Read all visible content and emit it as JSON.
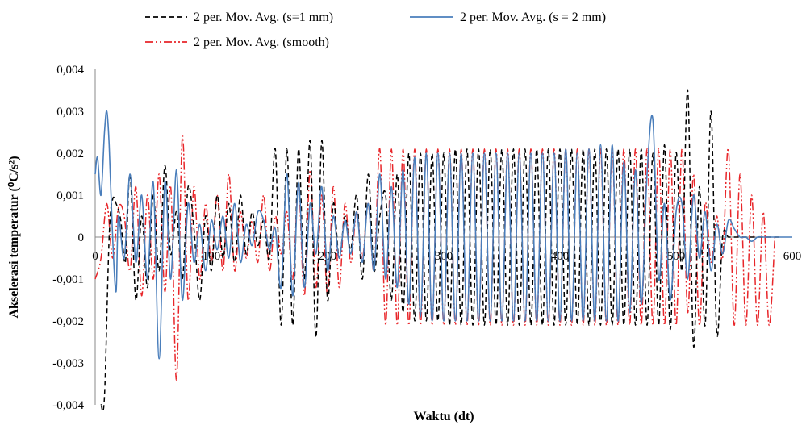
{
  "chart_data": {
    "type": "line",
    "xlabel": "Waktu (dt)",
    "ylabel": "Akselerasi temperatur (⁰C/s²)",
    "xlim": [
      0,
      600
    ],
    "ylim": [
      -0.004,
      0.004
    ],
    "x_ticks": [
      "0",
      "100",
      "200",
      "300",
      "400",
      "500",
      "600"
    ],
    "y_ticks": [
      "-0,004",
      "-0,003",
      "-0,002",
      "-0,001",
      "0",
      "0,001",
      "0,002",
      "0,003",
      "0,004"
    ],
    "grid": false,
    "legend_position": "top",
    "series": [
      {
        "name": "2 per. Mov. Avg. (s=1 mm)",
        "color": "#000000",
        "dash": "dashed",
        "x": [
          5,
          8,
          12,
          15,
          18,
          22,
          26,
          30,
          35,
          40,
          45,
          50,
          55,
          60,
          65,
          70,
          75,
          80,
          85,
          90,
          95,
          100,
          105,
          110,
          115,
          120,
          125,
          130,
          135,
          140,
          145,
          150,
          155,
          160,
          165,
          170,
          175,
          180,
          185,
          190,
          195,
          200,
          205,
          210,
          215,
          220,
          225,
          230,
          235,
          240,
          245,
          250,
          255,
          260,
          265,
          270,
          275,
          280,
          285,
          290,
          295,
          300,
          305,
          310,
          315,
          320,
          325,
          330,
          335,
          340,
          345,
          350,
          355,
          360,
          365,
          370,
          375,
          380,
          385,
          390,
          395,
          400,
          405,
          410,
          415,
          420,
          425,
          430,
          435,
          440,
          445,
          450,
          455,
          460,
          465,
          470,
          475,
          480,
          485,
          490,
          495,
          500,
          505,
          510,
          515,
          520,
          525,
          530,
          535,
          540,
          545,
          550,
          555,
          560,
          565,
          570,
          575,
          580,
          585,
          590
        ],
        "y": [
          -0.004,
          -0.0038,
          0.0,
          0.0009,
          0.0008,
          0.0004,
          -0.0006,
          0.0015,
          -0.0015,
          0.0005,
          -0.0012,
          0.001,
          -0.0008,
          0.0017,
          -0.0004,
          0.0006,
          -0.001,
          0.0012,
          0.0002,
          -0.0015,
          0.0005,
          -0.0008,
          0.001,
          -0.0005,
          0.0008,
          -0.0006,
          0.001,
          -0.0004,
          0.0006,
          -0.0002,
          0.0004,
          -0.0005,
          0.0021,
          -0.0021,
          0.0021,
          -0.0021,
          0.0021,
          -0.001,
          0.0023,
          -0.0024,
          0.0023,
          -0.0015,
          0.0008,
          -0.0005,
          0.0005,
          -0.0003,
          0.001,
          -0.001,
          0.0015,
          -0.0008,
          0.0005,
          0.001,
          -0.0015,
          0.0015,
          -0.0018,
          0.002,
          -0.002,
          0.002,
          -0.002,
          0.002,
          -0.002,
          0.002,
          -0.0021,
          0.0021,
          -0.0021,
          0.0021,
          -0.0021,
          0.0021,
          -0.0021,
          0.0021,
          -0.0021,
          0.0021,
          -0.0021,
          0.0021,
          -0.0021,
          0.0021,
          -0.0021,
          0.0021,
          -0.0021,
          0.0021,
          -0.0021,
          0.0021,
          -0.0021,
          0.0021,
          -0.0021,
          0.0021,
          -0.0021,
          0.0021,
          -0.0021,
          0.0021,
          -0.0021,
          0.0021,
          -0.0021,
          0.0021,
          -0.0021,
          0.0021,
          -0.0021,
          0.002,
          -0.0021,
          0.0022,
          -0.0022,
          0.002,
          -0.0008,
          0.0035,
          -0.0026,
          0.0012,
          -0.0021,
          0.003,
          -0.0023,
          0.0,
          0.0,
          0.0,
          0.0,
          0.0,
          0.0,
          0.0,
          0.0,
          0.0,
          0.0,
          0.0
        ]
      },
      {
        "name": "2 per. Mov. Avg. (s = 2 mm)",
        "color": "#4a7ebb",
        "dash": "solid",
        "x": [
          0,
          2,
          5,
          8,
          10,
          12,
          15,
          18,
          20,
          25,
          30,
          35,
          40,
          45,
          50,
          55,
          60,
          65,
          70,
          75,
          80,
          85,
          90,
          95,
          100,
          105,
          110,
          115,
          120,
          125,
          130,
          135,
          140,
          145,
          150,
          155,
          160,
          165,
          170,
          175,
          180,
          185,
          190,
          195,
          200,
          205,
          210,
          215,
          220,
          225,
          230,
          235,
          240,
          245,
          250,
          255,
          260,
          265,
          270,
          275,
          280,
          285,
          290,
          295,
          300,
          305,
          310,
          315,
          320,
          325,
          330,
          335,
          340,
          345,
          350,
          355,
          360,
          365,
          370,
          375,
          380,
          385,
          390,
          395,
          400,
          405,
          410,
          415,
          420,
          425,
          430,
          435,
          440,
          445,
          450,
          455,
          460,
          465,
          470,
          475,
          480,
          485,
          490,
          495,
          500,
          505,
          510,
          515,
          520,
          525,
          530,
          535,
          540,
          545,
          550,
          555,
          560,
          565,
          570,
          575,
          580,
          585,
          590,
          595,
          600
        ],
        "y": [
          0.0015,
          0.0019,
          0.001,
          0.0025,
          0.003,
          0.0022,
          0.0,
          -0.0013,
          0.0005,
          -0.0005,
          0.0015,
          -0.0006,
          0.001,
          -0.001,
          0.0013,
          -0.0029,
          0.0013,
          -0.001,
          0.0016,
          -0.0015,
          0.0008,
          -0.0006,
          0.0003,
          -0.0008,
          0.0004,
          -0.0003,
          0.0005,
          -0.0005,
          0.0008,
          -0.0006,
          0.0003,
          -0.0002,
          0.0006,
          0.0004,
          -0.0003,
          0.0002,
          -0.0012,
          0.0015,
          -0.0014,
          0.0013,
          -0.0012,
          0.0008,
          -0.0004,
          0.0012,
          -0.0008,
          0.0005,
          -0.0005,
          0.0004,
          -0.0004,
          0.0006,
          -0.0006,
          0.0008,
          -0.0008,
          0.0015,
          -0.001,
          0.0012,
          -0.0012,
          0.0016,
          -0.0016,
          0.0019,
          -0.0019,
          0.002,
          -0.002,
          0.002,
          -0.002,
          0.002,
          -0.002,
          0.002,
          -0.002,
          0.002,
          -0.002,
          0.002,
          -0.002,
          0.002,
          -0.002,
          0.002,
          -0.002,
          0.002,
          -0.002,
          0.002,
          -0.002,
          0.002,
          -0.002,
          0.002,
          -0.002,
          0.0021,
          -0.002,
          0.002,
          -0.002,
          0.0021,
          -0.002,
          0.0022,
          -0.002,
          0.0022,
          -0.002,
          0.0018,
          -0.0018,
          0.0016,
          -0.0016,
          0.0015,
          0.0028,
          -0.001,
          0.0008,
          -0.0015,
          0.0006,
          0.0008,
          -0.001,
          0.001,
          -0.0005,
          0.0006,
          -0.0008,
          0.0003,
          -0.0004,
          0.0004,
          0.0002,
          0.0,
          0.0,
          -0.0001,
          0.0,
          0.0,
          0.0,
          0.0,
          0.0,
          0.0,
          0.0
        ]
      },
      {
        "name": "2 per. Mov. Avg. (smooth)",
        "color": "#e8262a",
        "dash": "dashdotdot",
        "x": [
          0,
          5,
          10,
          15,
          20,
          25,
          30,
          35,
          40,
          45,
          50,
          55,
          60,
          65,
          70,
          75,
          80,
          85,
          90,
          95,
          100,
          105,
          110,
          115,
          120,
          125,
          130,
          135,
          140,
          145,
          150,
          155,
          160,
          165,
          170,
          175,
          180,
          185,
          190,
          195,
          200,
          205,
          210,
          215,
          220,
          225,
          230,
          235,
          240,
          245,
          250,
          255,
          260,
          265,
          270,
          275,
          280,
          285,
          290,
          295,
          300,
          305,
          310,
          315,
          320,
          325,
          330,
          335,
          340,
          345,
          350,
          355,
          360,
          365,
          370,
          375,
          380,
          385,
          390,
          395,
          400,
          405,
          410,
          415,
          420,
          425,
          430,
          435,
          440,
          445,
          450,
          455,
          460,
          465,
          470,
          475,
          480,
          485,
          490,
          495,
          500,
          505,
          510,
          515,
          520,
          525,
          530,
          535,
          540,
          545,
          550,
          555,
          560,
          565,
          570,
          575,
          580,
          585
        ],
        "y": [
          -0.001,
          -0.0005,
          0.0008,
          -0.0005,
          0.0007,
          0.0005,
          -0.0008,
          0.0012,
          -0.0014,
          0.001,
          -0.001,
          0.0015,
          -0.0013,
          0.0012,
          -0.0034,
          0.0024,
          -0.0015,
          0.0012,
          -0.001,
          0.0008,
          -0.0006,
          0.001,
          -0.0008,
          0.0015,
          -0.0008,
          0.0006,
          -0.0005,
          0.0004,
          -0.0006,
          0.001,
          -0.0008,
          0.0005,
          -0.0004,
          0.0006,
          -0.001,
          0.0012,
          -0.0014,
          0.0016,
          -0.0012,
          0.001,
          -0.0014,
          0.0012,
          -0.0012,
          0.0008,
          -0.0006,
          0.0006,
          -0.0005,
          0.0008,
          -0.0008,
          0.0021,
          -0.0021,
          0.0021,
          -0.0021,
          0.0021,
          -0.0021,
          0.0021,
          -0.0021,
          0.0021,
          -0.0021,
          0.0021,
          -0.0021,
          0.0021,
          -0.0021,
          0.0021,
          -0.0021,
          0.0021,
          -0.0021,
          0.0021,
          -0.0021,
          0.0021,
          -0.0021,
          0.0021,
          -0.0021,
          0.0021,
          -0.0021,
          0.0021,
          -0.0021,
          0.0021,
          -0.0021,
          0.0021,
          -0.0021,
          0.0021,
          -0.0021,
          0.0021,
          -0.0021,
          0.0021,
          -0.0021,
          0.0021,
          -0.0021,
          0.0021,
          -0.0021,
          0.0021,
          -0.0021,
          0.0021,
          -0.0021,
          0.0021,
          -0.0021,
          0.0021,
          -0.0021,
          0.0021,
          -0.0021,
          0.0021,
          -0.0018,
          0.0015,
          -0.0021,
          0.0008,
          -0.0006,
          0.0005,
          -0.0005,
          0.0021,
          -0.0021,
          0.0015,
          -0.0021,
          0.001,
          -0.0021,
          0.0006,
          -0.0021,
          0.0
        ]
      }
    ]
  }
}
